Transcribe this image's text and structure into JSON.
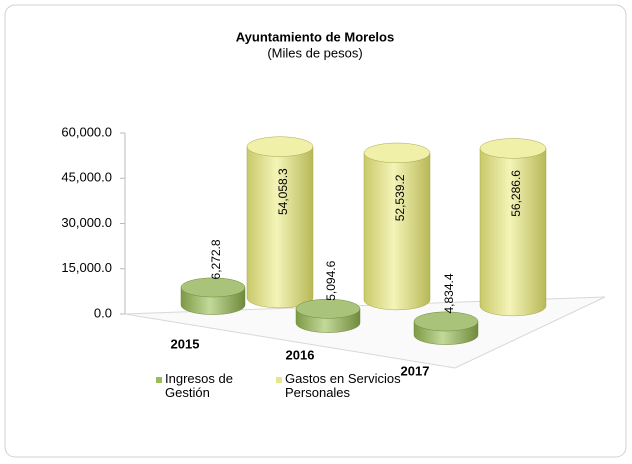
{
  "chart_data": {
    "type": "cylinder-bar",
    "title": "Ayuntamiento de Morelos",
    "subtitle": "(Miles de pesos)",
    "categories": [
      "2015",
      "2016",
      "2017"
    ],
    "series": [
      {
        "name": "Ingresos de Gestión",
        "color": "#9bbb59",
        "values": [
          6272.8,
          5094.6,
          4834.4
        ],
        "value_labels": [
          "6,272.8",
          "5,094.6",
          "4,834.4"
        ]
      },
      {
        "name": "Gastos en Servicios Personales",
        "color": "#e6e68a",
        "values": [
          54058.3,
          52539.2,
          56286.6
        ],
        "value_labels": [
          "54,058.3",
          "52,539.2",
          "56,286.6"
        ]
      }
    ],
    "ylim": [
      0,
      60000
    ],
    "yticks": [
      {
        "value": 0,
        "label": "0.0"
      },
      {
        "value": 15000,
        "label": "15,000.0"
      },
      {
        "value": 30000,
        "label": "30,000.0"
      },
      {
        "value": 45000,
        "label": "45,000.0"
      },
      {
        "value": 60000,
        "label": "60,000.0"
      }
    ]
  }
}
